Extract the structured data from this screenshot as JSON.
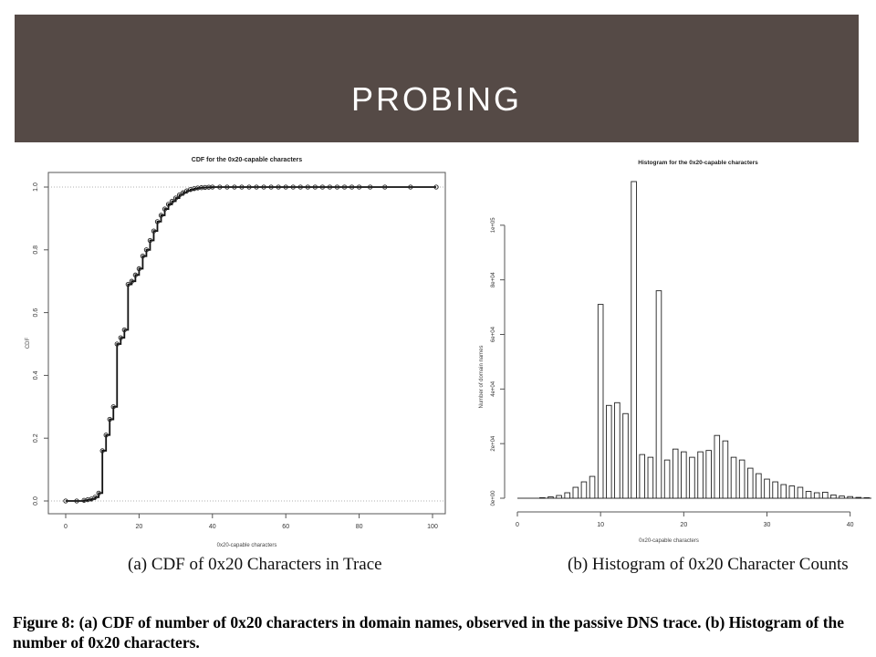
{
  "slide": {
    "title": "PROBING",
    "caption_a": "(a) CDF of 0x20 Characters in Trace",
    "caption_b": "(b) Histogram of 0x20 Character Counts",
    "figure_caption": "Figure 8: (a) CDF of number of 0x20 characters in domain names, observed in the passive DNS trace. (b) Histogram of the number of 0x20 characters.",
    "banner_color": "#554a46"
  },
  "chart_data": [
    {
      "type": "line",
      "title": "CDF for the 0x20-capable characters",
      "xlabel": "0x20-capable characters",
      "ylabel": "CDF",
      "xlim": [
        0,
        100
      ],
      "ylim": [
        0,
        1
      ],
      "xticks": [
        "0",
        "20",
        "40",
        "60",
        "80",
        "100"
      ],
      "yticks": [
        "0.0",
        "0.2",
        "0.4",
        "0.6",
        "0.8",
        "1.0"
      ],
      "step": true,
      "grid": "dotted lines at 0 and 1",
      "x": [
        0,
        3,
        5,
        6,
        7,
        8,
        9,
        10,
        11,
        12,
        13,
        14,
        15,
        16,
        17,
        18,
        19,
        20,
        21,
        22,
        23,
        24,
        25,
        26,
        27,
        28,
        29,
        30,
        31,
        32,
        33,
        34,
        35,
        36,
        37,
        38,
        39,
        40,
        42,
        44,
        46,
        48,
        50,
        52,
        54,
        56,
        58,
        60,
        62,
        64,
        66,
        68,
        70,
        72,
        74,
        76,
        78,
        80,
        83,
        87,
        94,
        101
      ],
      "y": [
        0,
        0,
        0.002,
        0.004,
        0.006,
        0.012,
        0.025,
        0.16,
        0.21,
        0.26,
        0.3,
        0.5,
        0.52,
        0.545,
        0.69,
        0.7,
        0.72,
        0.74,
        0.78,
        0.8,
        0.83,
        0.86,
        0.89,
        0.91,
        0.93,
        0.945,
        0.955,
        0.965,
        0.975,
        0.982,
        0.988,
        0.992,
        0.995,
        0.997,
        0.998,
        0.999,
        0.9995,
        1,
        1,
        1,
        1,
        1,
        1,
        1,
        1,
        1,
        1,
        1,
        1,
        1,
        1,
        1,
        1,
        1,
        1,
        1,
        1,
        1,
        1,
        1,
        1,
        1
      ]
    },
    {
      "type": "bar",
      "title": "Histogram for the 0x20-capable characters",
      "xlabel": "0x20-capable characters",
      "ylabel": "Number of domain names",
      "xlim": [
        0,
        43
      ],
      "ylim": [
        0,
        120000
      ],
      "xticks": [
        "0",
        "10",
        "20",
        "30",
        "40"
      ],
      "yticks": [
        "0e+00",
        "2e+04",
        "4e+04",
        "6e+04",
        "8e+04",
        "1e+05"
      ],
      "categories": [
        3,
        4,
        5,
        6,
        7,
        8,
        9,
        10,
        11,
        12,
        13,
        14,
        15,
        16,
        17,
        18,
        19,
        20,
        21,
        22,
        23,
        24,
        25,
        26,
        27,
        28,
        29,
        30,
        31,
        32,
        33,
        34,
        35,
        36,
        37,
        38,
        39,
        40,
        41,
        42
      ],
      "values": [
        200,
        500,
        1000,
        2000,
        4000,
        6000,
        8000,
        71000,
        34000,
        35000,
        31000,
        116000,
        16000,
        15000,
        76000,
        14000,
        18000,
        17000,
        15000,
        17000,
        17500,
        23000,
        21000,
        15000,
        14000,
        11000,
        9000,
        7000,
        6000,
        5000,
        4500,
        4000,
        2500,
        2000,
        2200,
        1200,
        800,
        600,
        300,
        200
      ]
    }
  ]
}
